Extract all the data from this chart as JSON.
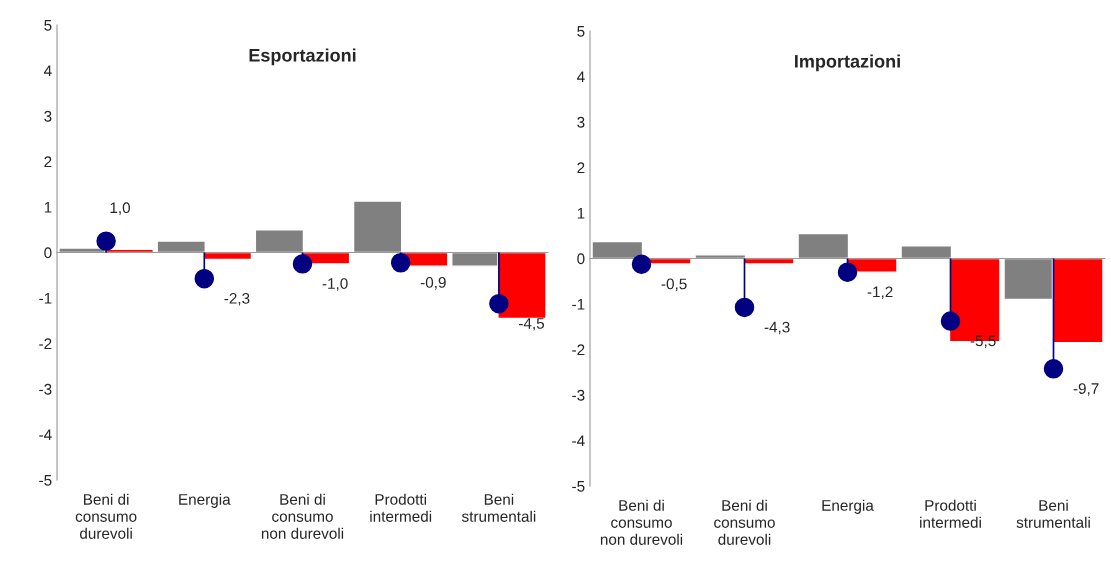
{
  "chart_data": [
    {
      "type": "bar",
      "title": "Esportazioni",
      "categories": [
        "Beni di\nconsumo\ndurevoli",
        "Energia",
        "Beni di\nconsumo\nnon durevoli",
        "Prodotti\nintermedi",
        "Beni\nstrumentali"
      ],
      "series": [
        {
          "color": "#808080",
          "values": [
            0.1,
            0.25,
            0.5,
            1.13,
            -0.3
          ]
        },
        {
          "color": "#ff0000",
          "values": [
            0.07,
            -0.15,
            -0.25,
            -0.3,
            -1.45
          ]
        },
        {
          "type": "lollipop",
          "axis": "y2",
          "color": "#000080",
          "values": [
            1.0,
            -2.3,
            -1.0,
            -0.9,
            -4.5
          ],
          "value_labels": [
            "1,0",
            "-2,3",
            "-1,0",
            "-0,9",
            "-4,5"
          ]
        }
      ],
      "ylim": [
        -5,
        5
      ],
      "yticks": [
        -5,
        -4,
        -3,
        -2,
        -1,
        0,
        1,
        2,
        3,
        4,
        5
      ],
      "y2lim": [
        -20,
        20
      ]
    },
    {
      "type": "bar",
      "title": "Importazioni",
      "categories": [
        "Beni di\nconsumo\nnon durevoli",
        "Beni di\nconsumo\ndurevoli",
        "Energia",
        "Prodotti\nintermedi",
        "Beni\nstrumentali"
      ],
      "series": [
        {
          "color": "#808080",
          "values": [
            0.37,
            0.08,
            0.55,
            0.28,
            -0.9
          ]
        },
        {
          "color": "#ff0000",
          "values": [
            -0.12,
            -0.12,
            -0.3,
            -1.83,
            -1.85
          ]
        },
        {
          "type": "lollipop",
          "axis": "y2",
          "color": "#000080",
          "values": [
            -0.5,
            -4.3,
            -1.2,
            -5.5,
            -9.7
          ],
          "value_labels": [
            "-0,5",
            "-4,3",
            "-1,2",
            "-5,5",
            "-9,7"
          ]
        }
      ],
      "ylim": [
        -5,
        5
      ],
      "yticks": [
        -5,
        -4,
        -3,
        -2,
        -1,
        0,
        1,
        2,
        3,
        4,
        5
      ],
      "y2lim": [
        -20,
        20
      ]
    }
  ]
}
